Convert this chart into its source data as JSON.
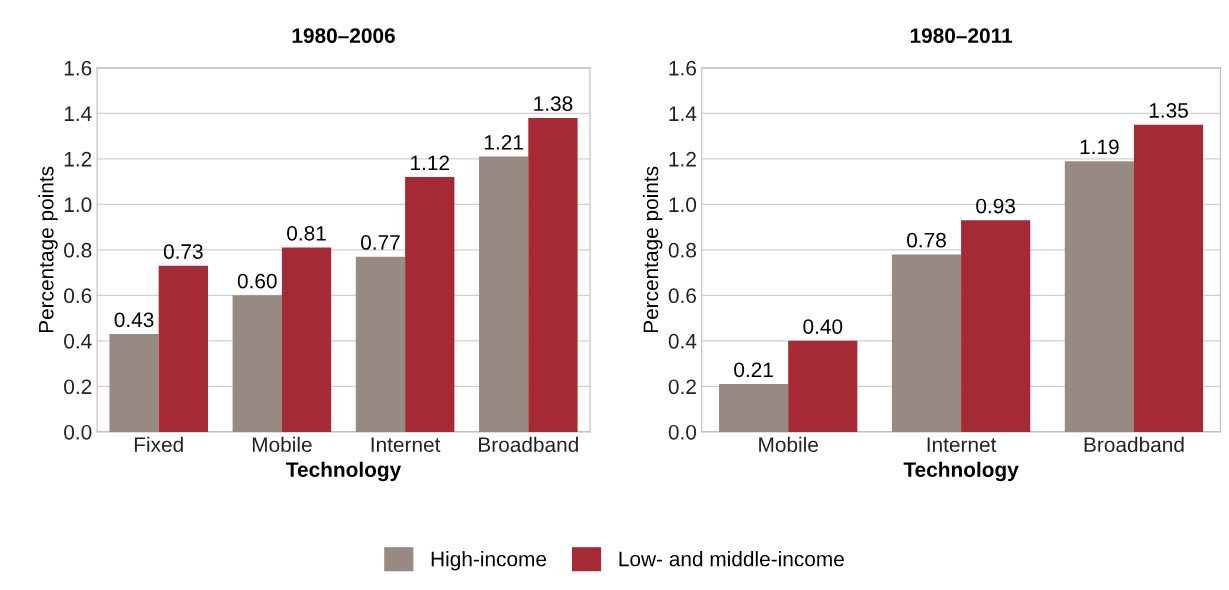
{
  "chart_data": [
    {
      "type": "bar",
      "title": "1980–2006",
      "xlabel": "Technology",
      "ylabel": "Percentage points",
      "categories": [
        "Fixed",
        "Mobile",
        "Internet",
        "Broadband"
      ],
      "series": [
        {
          "color": "#968a82",
          "values": [
            0.43,
            0.6,
            0.77,
            1.21
          ],
          "value_labels": [
            "0.43",
            "0.60",
            "0.77",
            "1.21"
          ]
        },
        {
          "color": "#a52a36",
          "values": [
            0.73,
            0.81,
            1.12,
            1.38
          ],
          "value_labels": [
            "0.73",
            "0.81",
            "1.12",
            "1.38"
          ]
        }
      ],
      "ylim": [
        0,
        1.6
      ],
      "yticks": [
        {
          "value": 0,
          "label": "0.0"
        },
        {
          "value": 0.2,
          "label": "0.2"
        },
        {
          "value": 0.4,
          "label": "0.4"
        },
        {
          "value": 0.6,
          "label": "0.6"
        },
        {
          "value": 0.8,
          "label": "0.8"
        },
        {
          "value": 1.0,
          "label": "1.0"
        },
        {
          "value": 1.2,
          "label": "1.2"
        },
        {
          "value": 1.4,
          "label": "1.4"
        },
        {
          "value": 1.6,
          "label": "1.6"
        }
      ],
      "grid": "y"
    },
    {
      "type": "bar",
      "title": "1980–2011",
      "xlabel": "Technology",
      "ylabel": "Percentage points",
      "categories": [
        "Mobile",
        "Internet",
        "Broadband"
      ],
      "series": [
        {
          "name": "High-income",
          "color": "#968a82",
          "values": [
            0.21,
            0.78,
            1.19
          ],
          "value_labels": [
            "0.21",
            "0.78",
            "1.19"
          ]
        },
        {
          "name": "Low- and middle-income",
          "color": "#a52a36",
          "values": [
            0.4,
            0.93,
            1.35
          ],
          "value_labels": [
            "0.40",
            "0.93",
            "1.35"
          ]
        }
      ],
      "ylim": [
        0,
        1.6
      ],
      "yticks": [
        {
          "value": 0,
          "label": "0.0"
        },
        {
          "value": 0.2,
          "label": "0.2"
        },
        {
          "value": 0.4,
          "label": "0.4"
        },
        {
          "value": 0.6,
          "label": "0.6"
        },
        {
          "value": 0.8,
          "label": "0.8"
        },
        {
          "value": 1.0,
          "label": "1.0"
        },
        {
          "value": 1.2,
          "label": "1.2"
        },
        {
          "value": 1.4,
          "label": "1.4"
        },
        {
          "value": 1.6,
          "label": "1.6"
        }
      ],
      "grid": "y",
      "legend": "bottom"
    }
  ]
}
